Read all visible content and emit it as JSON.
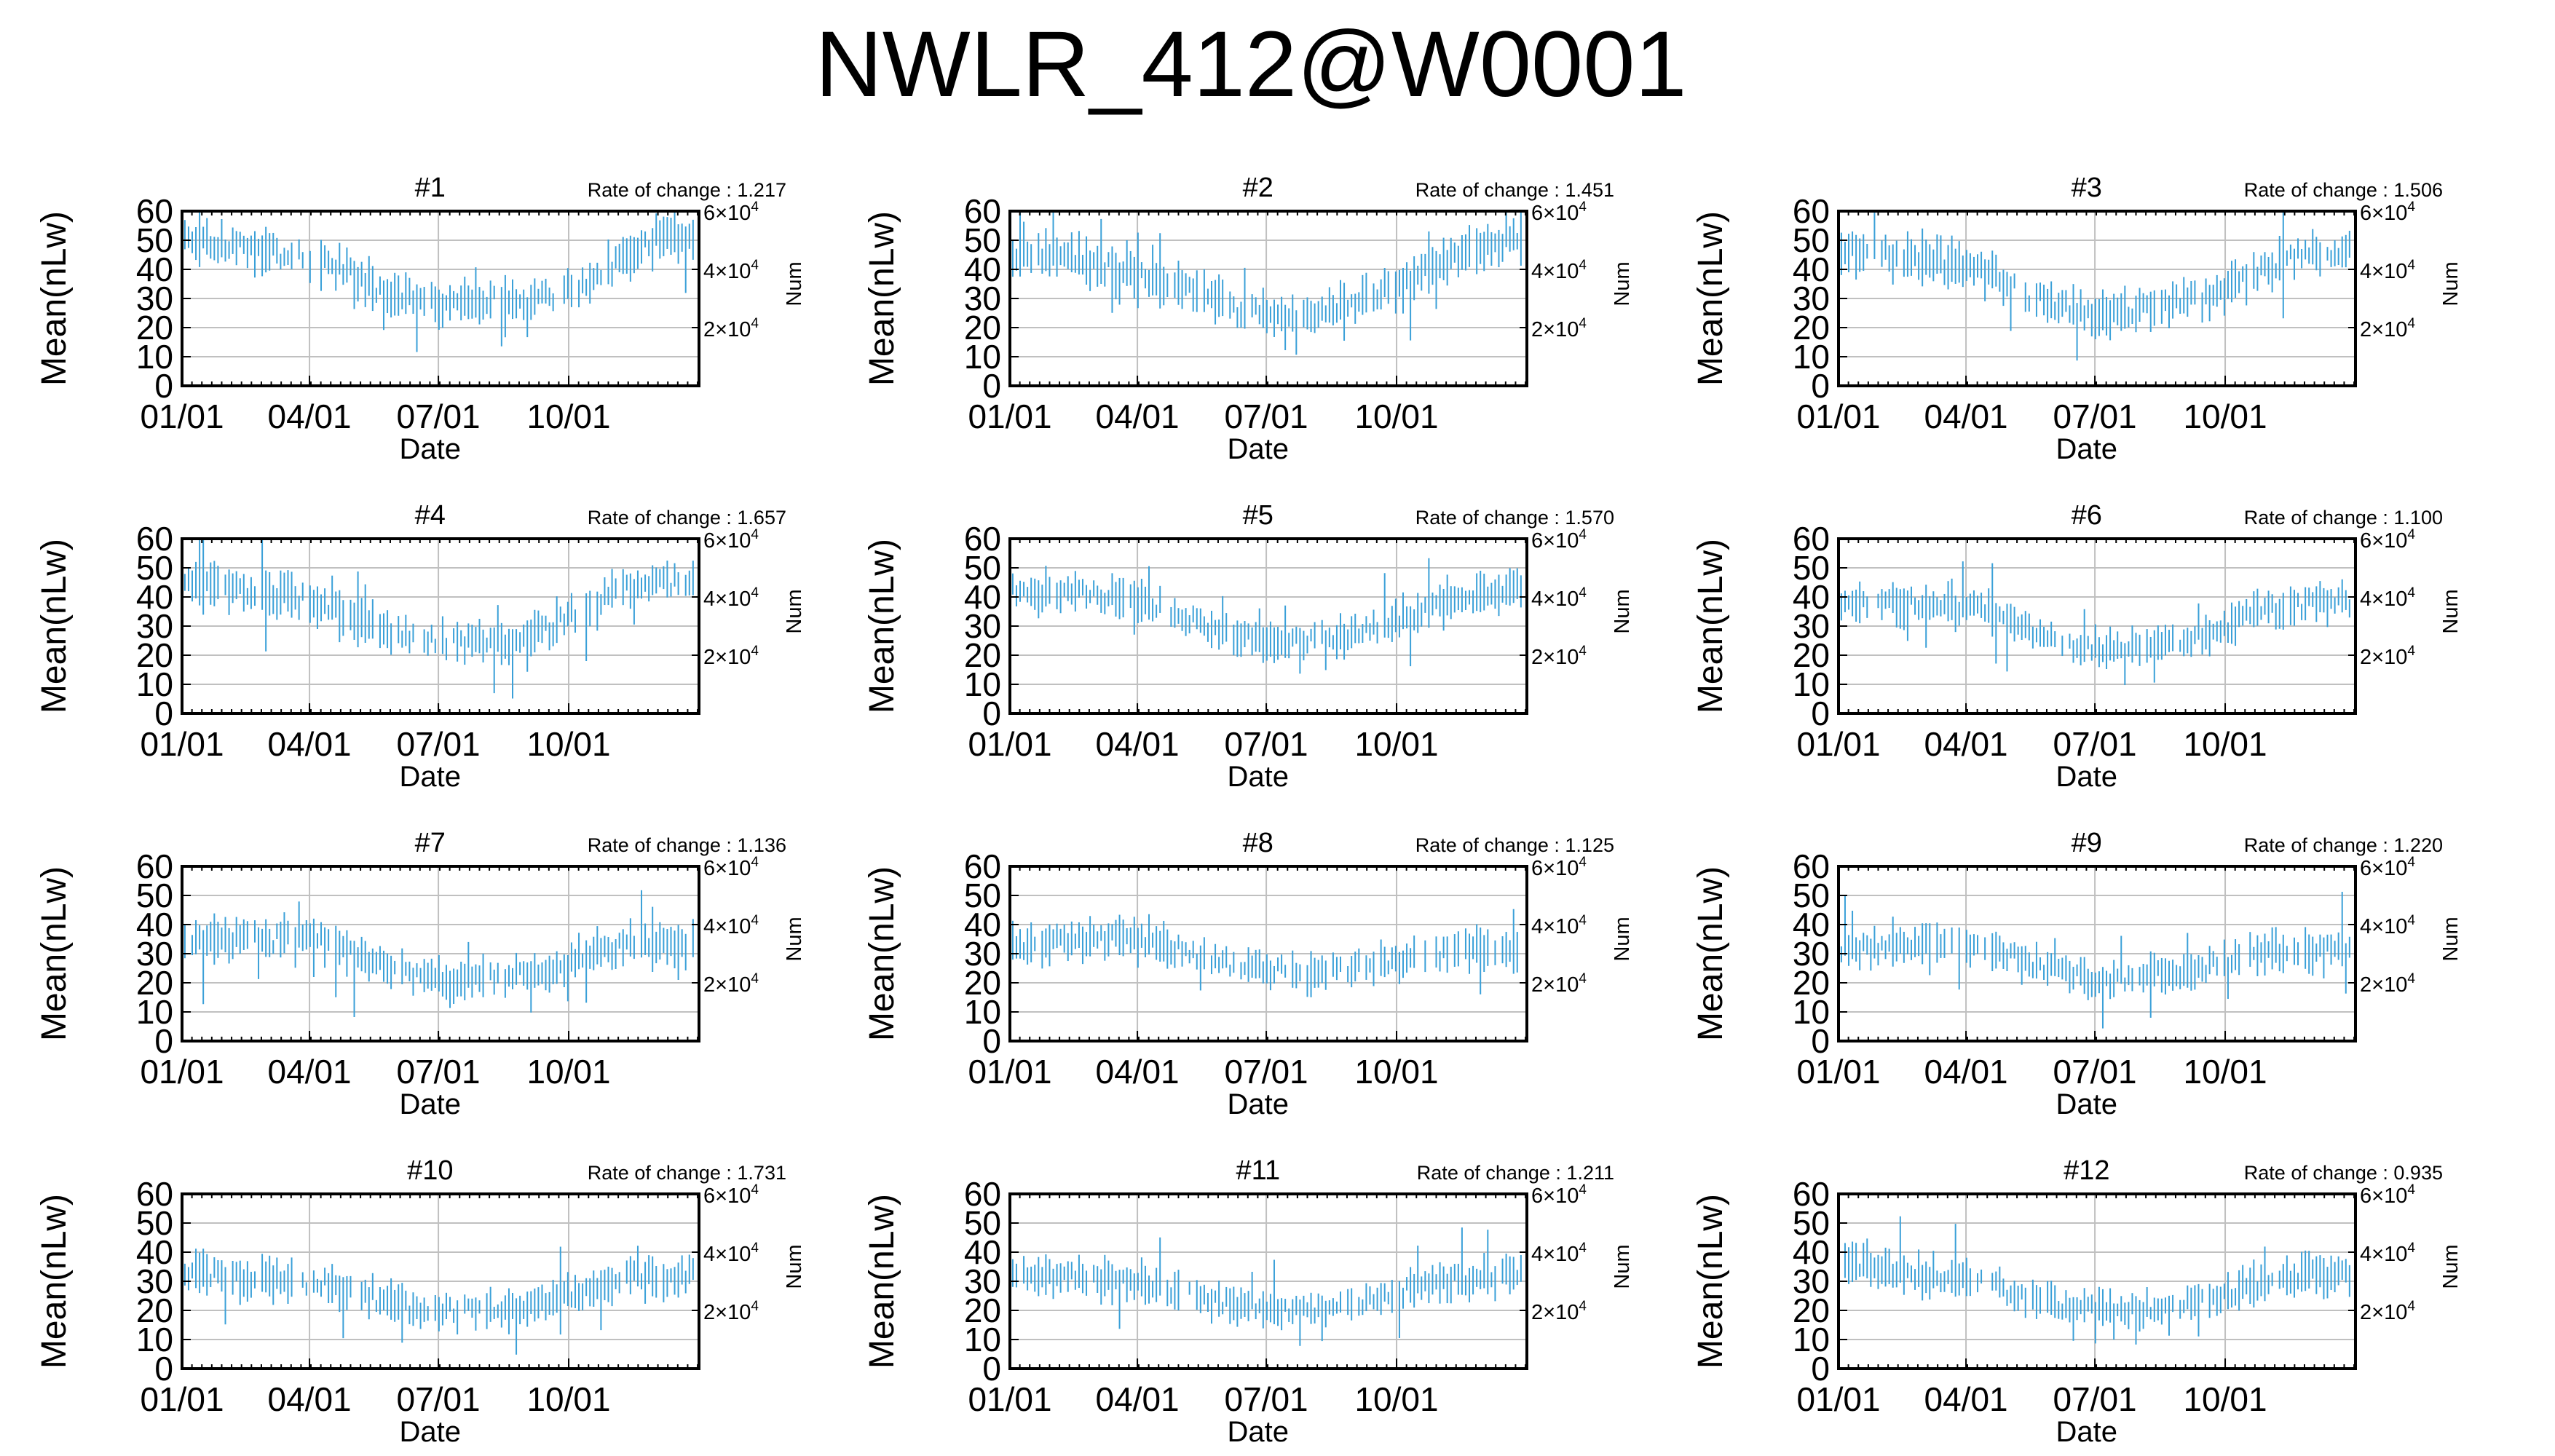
{
  "figure": {
    "title": "NWLR_412@W0001"
  },
  "colors": {
    "data_line": "#3aa0d8",
    "grid": "#c0c0c0",
    "frame": "#000000"
  },
  "chart_data": [
    {
      "type": "line",
      "title": "#1",
      "rate_label": "Rate of change : 1.217",
      "rate_of_change": 1.217,
      "x_date_range": [
        "01/01",
        "12/31"
      ],
      "xticks": [
        "01/01",
        "04/01",
        "07/01",
        "10/01"
      ],
      "xlabel": "Date",
      "ylabel": "Mean(nLw)",
      "ylim": [
        0,
        60
      ],
      "yticks": [
        "0",
        "10",
        "20",
        "30",
        "40",
        "50",
        "60"
      ],
      "y2label": "Num",
      "y2ticks": [
        {
          "base": "2×10",
          "exp": "4",
          "value": 20000
        },
        {
          "base": "4×10",
          "exp": "4",
          "value": 40000
        },
        {
          "base": "6×10",
          "exp": "4",
          "value": 60000
        }
      ],
      "grid": true,
      "series": [
        {
          "color": "#3aa0d8",
          "monthly_mean": [
            50,
            48,
            45,
            42,
            34,
            29,
            28,
            30,
            30,
            36,
            46,
            52
          ],
          "monthly_spread": [
            10,
            10,
            10,
            11,
            10,
            9,
            9,
            9,
            9,
            10,
            10,
            9
          ]
        }
      ]
    },
    {
      "type": "line",
      "title": "#2",
      "rate_label": "Rate of change : 1.451",
      "rate_of_change": 1.451,
      "x_date_range": [
        "01/01",
        "12/31"
      ],
      "xticks": [
        "01/01",
        "04/01",
        "07/01",
        "10/01"
      ],
      "xlabel": "Date",
      "ylabel": "Mean(nLw)",
      "ylim": [
        0,
        60
      ],
      "yticks": [
        "0",
        "10",
        "20",
        "30",
        "40",
        "50",
        "60"
      ],
      "y2label": "Num",
      "y2ticks": [
        {
          "base": "2×10",
          "exp": "4",
          "value": 20000
        },
        {
          "base": "4×10",
          "exp": "4",
          "value": 40000
        },
        {
          "base": "6×10",
          "exp": "4",
          "value": 60000
        }
      ],
      "grid": true,
      "series": [
        {
          "color": "#3aa0d8",
          "monthly_mean": [
            46,
            44,
            40,
            38,
            31,
            25,
            24,
            26,
            31,
            38,
            46,
            50
          ],
          "monthly_spread": [
            10,
            10,
            10,
            11,
            10,
            9,
            9,
            9,
            10,
            10,
            10,
            9
          ]
        }
      ]
    },
    {
      "type": "line",
      "title": "#3",
      "rate_label": "Rate of change : 1.506",
      "rate_of_change": 1.506,
      "x_date_range": [
        "01/01",
        "12/31"
      ],
      "xticks": [
        "01/01",
        "04/01",
        "07/01",
        "10/01"
      ],
      "xlabel": "Date",
      "ylabel": "Mean(nLw)",
      "ylim": [
        0,
        60
      ],
      "yticks": [
        "0",
        "10",
        "20",
        "30",
        "40",
        "50",
        "60"
      ],
      "y2label": "Num",
      "y2ticks": [
        {
          "base": "2×10",
          "exp": "4",
          "value": 20000
        },
        {
          "base": "4×10",
          "exp": "4",
          "value": 40000
        },
        {
          "base": "6×10",
          "exp": "4",
          "value": 60000
        }
      ],
      "grid": true,
      "series": [
        {
          "color": "#3aa0d8",
          "monthly_mean": [
            46,
            44,
            42,
            38,
            31,
            26,
            24,
            27,
            30,
            37,
            44,
            46
          ],
          "monthly_spread": [
            10,
            10,
            10,
            10,
            10,
            9,
            9,
            9,
            10,
            10,
            10,
            9
          ]
        }
      ]
    },
    {
      "type": "line",
      "title": "#4",
      "rate_label": "Rate of change : 1.657",
      "rate_of_change": 1.657,
      "x_date_range": [
        "01/01",
        "12/31"
      ],
      "xticks": [
        "01/01",
        "04/01",
        "07/01",
        "10/01"
      ],
      "xlabel": "Date",
      "ylabel": "Mean(nLw)",
      "ylim": [
        0,
        60
      ],
      "yticks": [
        "0",
        "10",
        "20",
        "30",
        "40",
        "50",
        "60"
      ],
      "y2label": "Num",
      "y2ticks": [
        {
          "base": "2×10",
          "exp": "4",
          "value": 20000
        },
        {
          "base": "4×10",
          "exp": "4",
          "value": 40000
        },
        {
          "base": "6×10",
          "exp": "4",
          "value": 60000
        }
      ],
      "grid": true,
      "series": [
        {
          "color": "#3aa0d8",
          "monthly_mean": [
            44,
            42,
            40,
            37,
            30,
            26,
            24,
            25,
            29,
            37,
            44,
            45
          ],
          "monthly_spread": [
            10,
            10,
            10,
            10,
            10,
            9,
            9,
            9,
            10,
            10,
            10,
            9
          ]
        }
      ]
    },
    {
      "type": "line",
      "title": "#5",
      "rate_label": "Rate of change : 1.570",
      "rate_of_change": 1.57,
      "x_date_range": [
        "01/01",
        "12/31"
      ],
      "xticks": [
        "01/01",
        "04/01",
        "07/01",
        "10/01"
      ],
      "xlabel": "Date",
      "ylabel": "Mean(nLw)",
      "ylim": [
        0,
        60
      ],
      "yticks": [
        "0",
        "10",
        "20",
        "30",
        "40",
        "50",
        "60"
      ],
      "y2label": "Num",
      "y2ticks": [
        {
          "base": "2×10",
          "exp": "4",
          "value": 20000
        },
        {
          "base": "4×10",
          "exp": "4",
          "value": 40000
        },
        {
          "base": "6×10",
          "exp": "4",
          "value": 60000
        }
      ],
      "grid": true,
      "series": [
        {
          "color": "#3aa0d8",
          "monthly_mean": [
            42,
            41,
            40,
            37,
            31,
            26,
            25,
            26,
            29,
            35,
            40,
            42
          ],
          "monthly_spread": [
            9,
            9,
            9,
            9,
            9,
            8,
            8,
            8,
            9,
            9,
            9,
            9
          ]
        }
      ]
    },
    {
      "type": "line",
      "title": "#6",
      "rate_label": "Rate of change : 1.100",
      "rate_of_change": 1.1,
      "x_date_range": [
        "01/01",
        "12/31"
      ],
      "xticks": [
        "01/01",
        "04/01",
        "07/01",
        "10/01"
      ],
      "xlabel": "Date",
      "ylabel": "Mean(nLw)",
      "ylim": [
        0,
        60
      ],
      "yticks": [
        "0",
        "10",
        "20",
        "30",
        "40",
        "50",
        "60"
      ],
      "y2label": "Num",
      "y2ticks": [
        {
          "base": "2×10",
          "exp": "4",
          "value": 20000
        },
        {
          "base": "4×10",
          "exp": "4",
          "value": 40000
        },
        {
          "base": "6×10",
          "exp": "4",
          "value": 60000
        }
      ],
      "grid": true,
      "series": [
        {
          "color": "#3aa0d8",
          "monthly_mean": [
            38,
            38,
            37,
            35,
            28,
            23,
            22,
            24,
            27,
            33,
            37,
            38
          ],
          "monthly_spread": [
            9,
            9,
            9,
            9,
            8,
            8,
            8,
            8,
            8,
            9,
            9,
            9
          ]
        }
      ]
    },
    {
      "type": "line",
      "title": "#7",
      "rate_label": "Rate of change : 1.136",
      "rate_of_change": 1.136,
      "x_date_range": [
        "01/01",
        "12/31"
      ],
      "xticks": [
        "01/01",
        "04/01",
        "07/01",
        "10/01"
      ],
      "xlabel": "Date",
      "ylabel": "Mean(nLw)",
      "ylim": [
        0,
        60
      ],
      "yticks": [
        "0",
        "10",
        "20",
        "30",
        "40",
        "50",
        "60"
      ],
      "y2label": "Num",
      "y2ticks": [
        {
          "base": "2×10",
          "exp": "4",
          "value": 20000
        },
        {
          "base": "4×10",
          "exp": "4",
          "value": 40000
        },
        {
          "base": "6×10",
          "exp": "4",
          "value": 60000
        }
      ],
      "grid": true,
      "series": [
        {
          "color": "#3aa0d8",
          "monthly_mean": [
            34,
            35,
            35,
            34,
            27,
            22,
            21,
            22,
            24,
            30,
            33,
            33
          ],
          "monthly_spread": [
            9,
            9,
            9,
            9,
            8,
            8,
            8,
            8,
            8,
            9,
            9,
            9
          ]
        }
      ]
    },
    {
      "type": "line",
      "title": "#8",
      "rate_label": "Rate of change : 1.125",
      "rate_of_change": 1.125,
      "x_date_range": [
        "01/01",
        "12/31"
      ],
      "xticks": [
        "01/01",
        "04/01",
        "07/01",
        "10/01"
      ],
      "xlabel": "Date",
      "ylabel": "Mean(nLw)",
      "ylim": [
        0,
        60
      ],
      "yticks": [
        "0",
        "10",
        "20",
        "30",
        "40",
        "50",
        "60"
      ],
      "y2label": "Num",
      "y2ticks": [
        {
          "base": "2×10",
          "exp": "4",
          "value": 20000
        },
        {
          "base": "4×10",
          "exp": "4",
          "value": 40000
        },
        {
          "base": "6×10",
          "exp": "4",
          "value": 60000
        }
      ],
      "grid": true,
      "series": [
        {
          "color": "#3aa0d8",
          "monthly_mean": [
            33,
            34,
            35,
            34,
            29,
            25,
            24,
            25,
            26,
            29,
            31,
            32
          ],
          "monthly_spread": [
            9,
            9,
            9,
            9,
            8,
            8,
            8,
            8,
            8,
            9,
            9,
            9
          ]
        }
      ]
    },
    {
      "type": "line",
      "title": "#9",
      "rate_label": "Rate of change : 1.220",
      "rate_of_change": 1.22,
      "x_date_range": [
        "01/01",
        "12/31"
      ],
      "xticks": [
        "01/01",
        "04/01",
        "07/01",
        "10/01"
      ],
      "xlabel": "Date",
      "ylabel": "Mean(nLw)",
      "ylim": [
        0,
        60
      ],
      "yticks": [
        "0",
        "10",
        "20",
        "30",
        "40",
        "50",
        "60"
      ],
      "y2label": "Num",
      "y2ticks": [
        {
          "base": "2×10",
          "exp": "4",
          "value": 20000
        },
        {
          "base": "4×10",
          "exp": "4",
          "value": 40000
        },
        {
          "base": "6×10",
          "exp": "4",
          "value": 60000
        }
      ],
      "grid": true,
      "series": [
        {
          "color": "#3aa0d8",
          "monthly_mean": [
            32,
            33,
            34,
            33,
            27,
            22,
            21,
            23,
            25,
            29,
            31,
            31
          ],
          "monthly_spread": [
            9,
            9,
            9,
            9,
            8,
            8,
            8,
            8,
            8,
            9,
            9,
            9
          ]
        }
      ]
    },
    {
      "type": "line",
      "title": "#10",
      "rate_label": "Rate of change : 1.731",
      "rate_of_change": 1.731,
      "x_date_range": [
        "01/01",
        "12/31"
      ],
      "xticks": [
        "01/01",
        "04/01",
        "07/01",
        "10/01"
      ],
      "xlabel": "Date",
      "ylabel": "Mean(nLw)",
      "ylim": [
        0,
        60
      ],
      "yticks": [
        "0",
        "10",
        "20",
        "30",
        "40",
        "50",
        "60"
      ],
      "y2label": "Num",
      "y2ticks": [
        {
          "base": "2×10",
          "exp": "4",
          "value": 20000
        },
        {
          "base": "4×10",
          "exp": "4",
          "value": 40000
        },
        {
          "base": "6×10",
          "exp": "4",
          "value": 60000
        }
      ],
      "grid": true,
      "series": [
        {
          "color": "#3aa0d8",
          "monthly_mean": [
            33,
            31,
            30,
            29,
            24,
            20,
            20,
            21,
            23,
            28,
            31,
            32
          ],
          "monthly_spread": [
            9,
            9,
            9,
            9,
            8,
            8,
            8,
            8,
            8,
            9,
            9,
            9
          ]
        }
      ]
    },
    {
      "type": "line",
      "title": "#11",
      "rate_label": "Rate of change : 1.211",
      "rate_of_change": 1.211,
      "x_date_range": [
        "01/01",
        "12/31"
      ],
      "xticks": [
        "01/01",
        "04/01",
        "07/01",
        "10/01"
      ],
      "xlabel": "Date",
      "ylabel": "Mean(nLw)",
      "ylim": [
        0,
        60
      ],
      "yticks": [
        "0",
        "10",
        "20",
        "30",
        "40",
        "50",
        "60"
      ],
      "y2label": "Num",
      "y2ticks": [
        {
          "base": "2×10",
          "exp": "4",
          "value": 20000
        },
        {
          "base": "4×10",
          "exp": "4",
          "value": 40000
        },
        {
          "base": "6×10",
          "exp": "4",
          "value": 60000
        }
      ],
      "grid": true,
      "series": [
        {
          "color": "#3aa0d8",
          "monthly_mean": [
            32,
            31,
            30,
            29,
            24,
            21,
            20,
            21,
            23,
            28,
            31,
            32
          ],
          "monthly_spread": [
            9,
            9,
            9,
            9,
            8,
            8,
            8,
            8,
            8,
            9,
            9,
            9
          ]
        }
      ]
    },
    {
      "type": "line",
      "title": "#12",
      "rate_label": "Rate of change : 0.935",
      "rate_of_change": 0.935,
      "x_date_range": [
        "01/01",
        "12/31"
      ],
      "xticks": [
        "01/01",
        "04/01",
        "07/01",
        "10/01"
      ],
      "xlabel": "Date",
      "ylabel": "Mean(nLw)",
      "ylim": [
        0,
        60
      ],
      "yticks": [
        "0",
        "10",
        "20",
        "30",
        "40",
        "50",
        "60"
      ],
      "y2label": "Num",
      "y2ticks": [
        {
          "base": "2×10",
          "exp": "4",
          "value": 20000
        },
        {
          "base": "4×10",
          "exp": "4",
          "value": 40000
        },
        {
          "base": "6×10",
          "exp": "4",
          "value": 60000
        }
      ],
      "grid": true,
      "series": [
        {
          "color": "#3aa0d8",
          "monthly_mean": [
            36,
            33,
            31,
            29,
            24,
            21,
            20,
            21,
            23,
            28,
            31,
            32
          ],
          "monthly_spread": [
            9,
            9,
            9,
            9,
            8,
            8,
            8,
            8,
            8,
            9,
            9,
            9
          ]
        }
      ]
    }
  ]
}
